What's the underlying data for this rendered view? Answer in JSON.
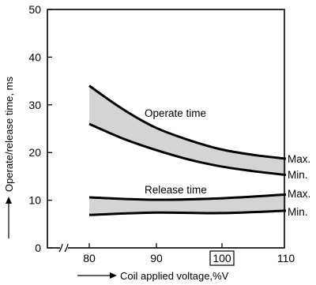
{
  "chart_data": {
    "type": "area",
    "xlabel": "Coil applied voltage,%V",
    "ylabel": "Operate/release time, ms",
    "xlim": [
      80,
      110
    ],
    "ylim": [
      0,
      50
    ],
    "x_ticks": [
      "80",
      "90",
      "100",
      "110"
    ],
    "y_ticks": [
      "0",
      "10",
      "20",
      "30",
      "40",
      "50"
    ],
    "boxed_tick": "100",
    "axis_break": true,
    "grid": false,
    "bands": [
      {
        "label": "Operate time",
        "max_label": "Max.",
        "min_label": "Min.",
        "x": [
          80,
          85,
          90,
          95,
          100,
          105,
          110
        ],
        "max": [
          34.0,
          29.2,
          25.3,
          22.7,
          20.7,
          19.5,
          18.7
        ],
        "min": [
          26.0,
          23.0,
          20.6,
          18.6,
          17.1,
          16.1,
          15.3
        ]
      },
      {
        "label": "Release time",
        "max_label": "Max.",
        "min_label": "Min.",
        "x": [
          80,
          90,
          100,
          110
        ],
        "max": [
          10.6,
          10.1,
          10.4,
          11.2
        ],
        "min": [
          6.9,
          7.4,
          7.3,
          7.8
        ]
      }
    ]
  }
}
